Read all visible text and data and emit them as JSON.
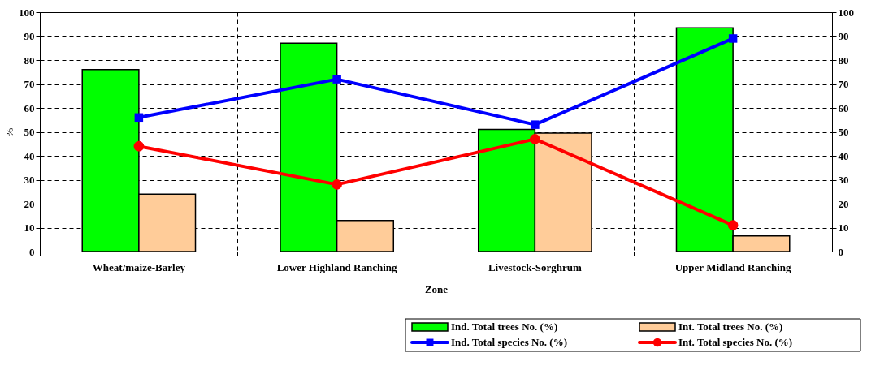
{
  "chart_data": {
    "type": "bar",
    "xlabel": "Zone",
    "ylabel": "%",
    "categories": [
      "Wheat/maize-Barley",
      "Lower Highland Ranching",
      "Livestock-Sorghrum",
      "Upper Midland Ranching"
    ],
    "series": [
      {
        "name": "Ind. Total trees No. (%)",
        "color": "#00ff00",
        "values": [
          76,
          87,
          51,
          93.5
        ]
      },
      {
        "name": "Int. Total trees No. (%)",
        "color": "#ffcc99",
        "values": [
          24,
          13,
          49.5,
          6.5
        ]
      },
      {
        "name": "Ind. Total species No. (%)",
        "type": "line",
        "marker": "square",
        "color": "#0000ff",
        "values": [
          56,
          72,
          53,
          89
        ]
      },
      {
        "name": "Int. Total species No. (%)",
        "type": "line",
        "marker": "circle",
        "color": "#ff0000",
        "values": [
          44,
          28,
          47,
          11
        ]
      }
    ],
    "ylim": [
      0,
      100
    ],
    "yticks": [
      0,
      10,
      20,
      30,
      40,
      50,
      60,
      70,
      80,
      90,
      100
    ],
    "y2lim": [
      0,
      100
    ],
    "y2ticks": [
      0,
      10,
      20,
      30,
      40,
      50,
      60,
      70,
      80,
      90,
      100
    ],
    "grid": true,
    "legend": "bottom right"
  }
}
